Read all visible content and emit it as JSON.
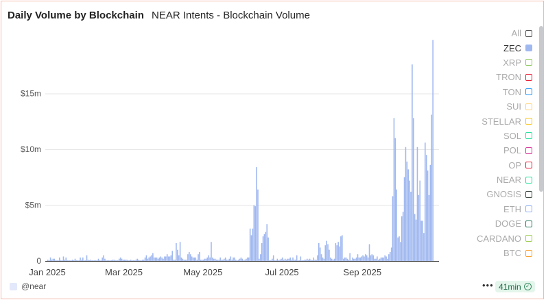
{
  "header": {
    "title": "Daily Volume by Blockchain",
    "subtitle": "NEAR Intents - Blockchain Volume"
  },
  "legend": {
    "items": [
      {
        "label": "All",
        "color": "#555555",
        "filled": false,
        "active": false
      },
      {
        "label": "ZEC",
        "color": "#a0b8f0",
        "filled": true,
        "active": true
      },
      {
        "label": "XRP",
        "color": "#90c860",
        "filled": false,
        "active": false
      },
      {
        "label": "TRON",
        "color": "#e8203a",
        "filled": false,
        "active": false
      },
      {
        "label": "TON",
        "color": "#2196f3",
        "filled": false,
        "active": false
      },
      {
        "label": "SUI",
        "color": "#ffd27a",
        "filled": false,
        "active": false
      },
      {
        "label": "STELLAR",
        "color": "#f5c518",
        "filled": false,
        "active": false
      },
      {
        "label": "SOL",
        "color": "#2de0a0",
        "filled": false,
        "active": false
      },
      {
        "label": "POL",
        "color": "#d63a9a",
        "filled": false,
        "active": false
      },
      {
        "label": "OP",
        "color": "#e8203a",
        "filled": false,
        "active": false
      },
      {
        "label": "NEAR",
        "color": "#20e09a",
        "filled": false,
        "active": false
      },
      {
        "label": "GNOSIS",
        "color": "#3c4a40",
        "filled": false,
        "active": false
      },
      {
        "label": "ETH",
        "color": "#8fb0f0",
        "filled": false,
        "active": false
      },
      {
        "label": "DOGE",
        "color": "#2a7a5a",
        "filled": false,
        "active": false
      },
      {
        "label": "CARDANO",
        "color": "#9ccc50",
        "filled": false,
        "active": false
      },
      {
        "label": "BTC",
        "color": "#f7a030",
        "filled": false,
        "active": false
      }
    ]
  },
  "footer": {
    "source": "@near",
    "more": "•••",
    "freshness": "41min",
    "check_icon": "check-circle-icon"
  },
  "chart_data": {
    "type": "bar",
    "series": [
      {
        "name": "ZEC",
        "color": "#a0b8f0"
      }
    ],
    "x_start": "2025-01-01",
    "x_unit": "day",
    "values_unit": "USD millions",
    "values": [
      0.1,
      0.05,
      0.3,
      0.1,
      0.2,
      0.2,
      0.05,
      0.05,
      0.05,
      0.3,
      0.05,
      0.05,
      0.4,
      0.1,
      0.3,
      0.05,
      0.05,
      0.05,
      0.05,
      0.1,
      0.05,
      0.2,
      0.05,
      0.05,
      0.05,
      0.3,
      0.1,
      0.3,
      0.05,
      0.05,
      0.5,
      0.1,
      0.05,
      0.1,
      0.05,
      0.05,
      0.05,
      0.05,
      0.05,
      0.2,
      0.05,
      0.05,
      0.3,
      0.5,
      0.2,
      0.05,
      0.05,
      0.05,
      0.05,
      0.05,
      0.1,
      0.1,
      0.05,
      0.05,
      0.05,
      0.2,
      0.3,
      0.2,
      0.1,
      0.1,
      0.1,
      0.1,
      0.05,
      0.05,
      0.1,
      0.05,
      0.05,
      0.05,
      0.1,
      0.2,
      0.1,
      0.05,
      0.05,
      0.1,
      0.1,
      0.3,
      0.5,
      0.2,
      0.3,
      0.4,
      0.5,
      0.7,
      0.3,
      0.3,
      0.3,
      0.2,
      0.3,
      0.4,
      0.3,
      0.2,
      0.4,
      0.4,
      0.6,
      0.4,
      0.4,
      0.5,
      0.9,
      0.1,
      0.1,
      1.6,
      1.0,
      0.5,
      1.7,
      0.3,
      0.2,
      0.1,
      0.1,
      0.1,
      0.6,
      0.8,
      0.6,
      0.4,
      0.3,
      0.3,
      0.3,
      0.1,
      0.6,
      0.8,
      0.1,
      0.1,
      0.1,
      0.2,
      0.2,
      0.3,
      0.5,
      0.3,
      1.7,
      0.3,
      0.2,
      0.2,
      0.1,
      0.1,
      0.1,
      0.3,
      0.1,
      0.1,
      0.2,
      0.3,
      0.1,
      0.1,
      0.2,
      0.4,
      0.1,
      0.3,
      0.3,
      0.1,
      0.05,
      0.1,
      0.2,
      0.3,
      0.2,
      0.05,
      0.1,
      0.2,
      0.3,
      0.3,
      2.9,
      2.3,
      2.9,
      5.0,
      4.9,
      8.4,
      6.4,
      0.2,
      0.6,
      1.6,
      2.2,
      2.4,
      2.6,
      3.3,
      2.1,
      0.05,
      0.05,
      0.2,
      0.5,
      0.05,
      0.05,
      0.2,
      0.05,
      0.1,
      0.2,
      0.3,
      0.1,
      0.2,
      0.1,
      0.2,
      0.2,
      0.3,
      0.1,
      0.3,
      0.1,
      0.1,
      0.5,
      0.05,
      0.05,
      0.4,
      0.05,
      0.05,
      0.1,
      0.1,
      0.2,
      0.1,
      0.2,
      0.1,
      0.05,
      0.3,
      0.1,
      0.1,
      0.5,
      1.6,
      1.2,
      0.6,
      0.3,
      0.2,
      1.4,
      1.8,
      1.5,
      1.0,
      0.3,
      0.2,
      0.1,
      0.2,
      1.6,
      1.4,
      1.7,
      1.3,
      2.2,
      2.3,
      0.2,
      0.3,
      0.3,
      0.2,
      0.1,
      0.7,
      0.05,
      0.3,
      0.2,
      0.2,
      0.3,
      0.6,
      0.3,
      0.3,
      0.4,
      0.5,
      0.4,
      0.6,
      0.5,
      0.3,
      1.5,
      0.5,
      0.6,
      0.5,
      0.2,
      0.2,
      0.4,
      0.1,
      0.2,
      0.3,
      0.3,
      0.3,
      0.5,
      0.4,
      0.2,
      0.6,
      0.8,
      1.2,
      5.8,
      12.8,
      11.0,
      6.4,
      2.1,
      2.2,
      1.7,
      4.0,
      4.4,
      7.5,
      10.2,
      8.9,
      8.2,
      7.2,
      6.2,
      17.6,
      12.8,
      4.2,
      3.7,
      10.2,
      5.9,
      7.2,
      3.6,
      3.6,
      2.5,
      10.6,
      9.5,
      8.1,
      5.9,
      8.6,
      13.1,
      19.8
    ],
    "ylim": [
      0,
      20.5
    ],
    "yticks": [
      {
        "value": 0,
        "label": "0"
      },
      {
        "value": 5,
        "label": "$5m"
      },
      {
        "value": 10,
        "label": "$10m"
      },
      {
        "value": 15,
        "label": "$15m"
      }
    ],
    "xticks": [
      {
        "day": 0,
        "label": "Jan 2025"
      },
      {
        "day": 59,
        "label": "Mar 2025"
      },
      {
        "day": 120,
        "label": "May 2025"
      },
      {
        "day": 181,
        "label": "Jul 2025"
      },
      {
        "day": 243,
        "label": "Sep 2025"
      }
    ],
    "grid": true,
    "legend_position": "right"
  }
}
